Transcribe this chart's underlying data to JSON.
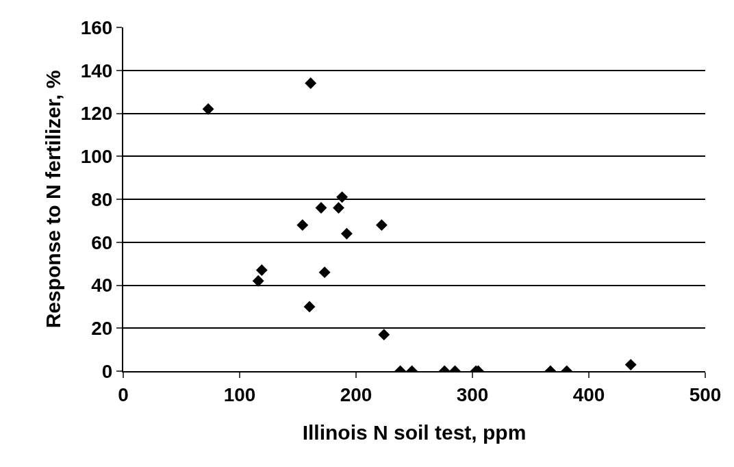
{
  "chart_data": {
    "type": "scatter",
    "xlabel": "Illinois N soil test, ppm",
    "ylabel": "Response to N fertilizer, %",
    "x": [
      73,
      161,
      154,
      170,
      185,
      188,
      192,
      222,
      119,
      116,
      173,
      160,
      224,
      238,
      248,
      276,
      285,
      303,
      305,
      367,
      381,
      436
    ],
    "values": [
      122,
      134,
      68,
      76,
      76,
      81,
      64,
      68,
      47,
      42,
      46,
      30,
      17,
      0,
      0,
      0,
      0,
      0,
      0,
      0,
      0,
      3
    ],
    "color": "#000000",
    "marker": "diamond",
    "grid": "y",
    "xlim": [
      0,
      500
    ],
    "xticks": [
      0,
      100,
      200,
      300,
      400,
      500
    ],
    "ylim": [
      0,
      160
    ],
    "yticks": [
      0,
      20,
      40,
      60,
      80,
      100,
      120,
      140,
      160
    ]
  }
}
